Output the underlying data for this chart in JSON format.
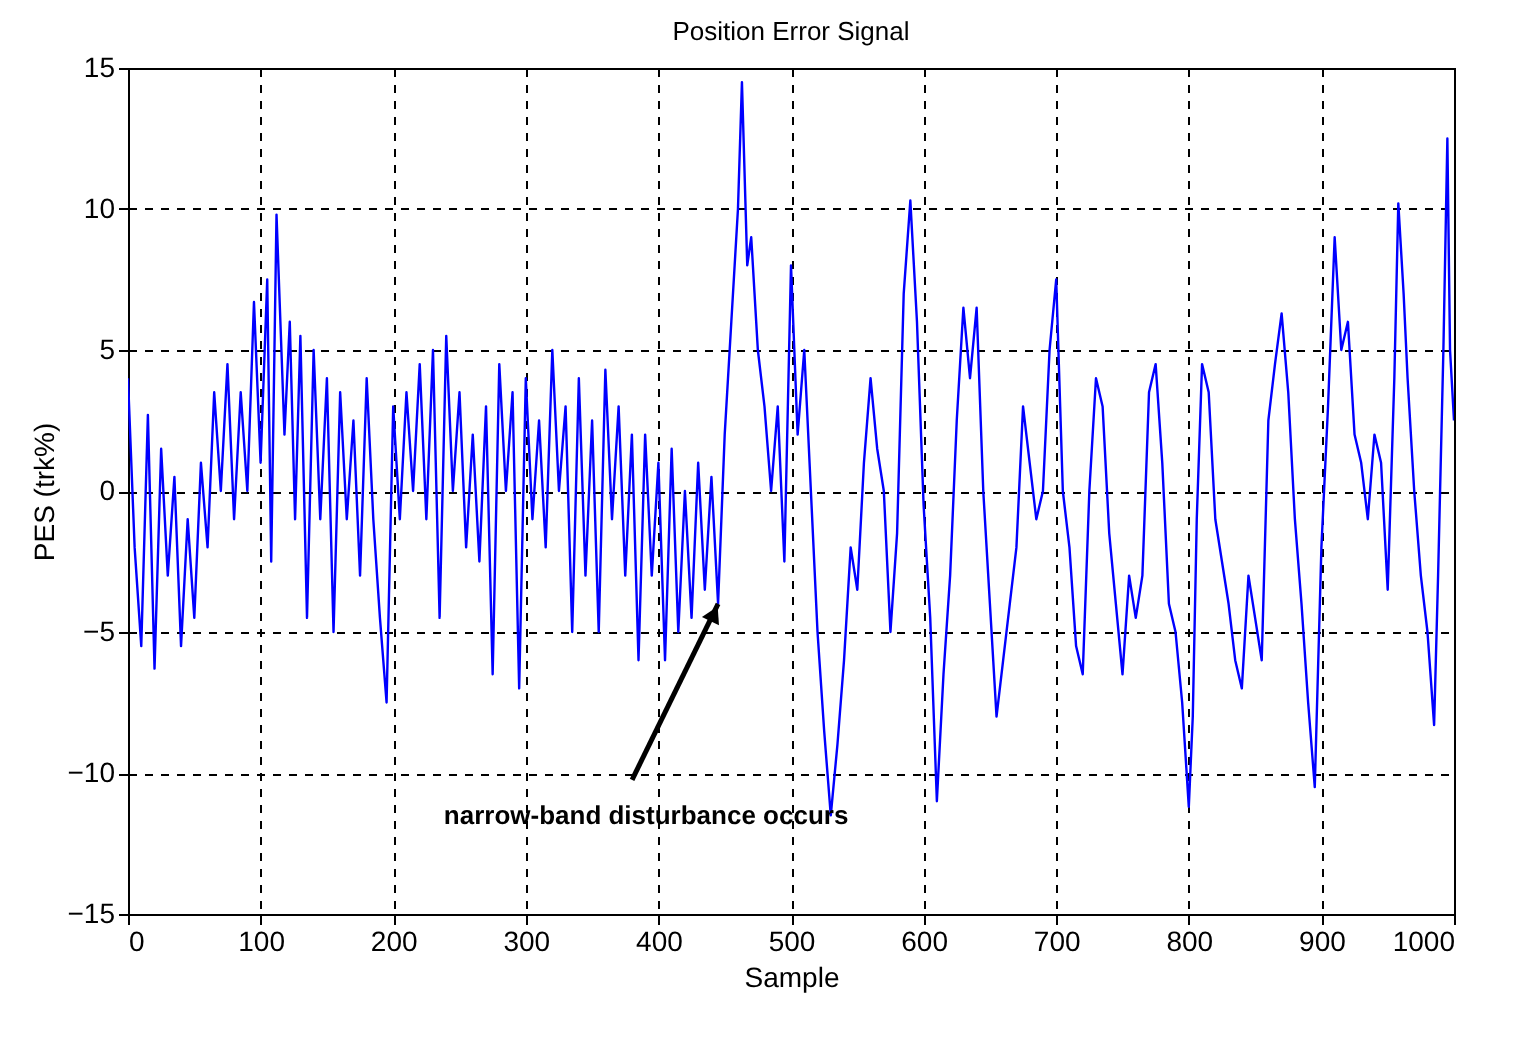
{
  "chart_data": {
    "type": "line",
    "title": "Position Error Signal",
    "xlabel": "Sample",
    "ylabel": "PES (trk%)",
    "x": [
      0,
      5,
      10,
      15,
      20,
      25,
      30,
      35,
      40,
      45,
      50,
      55,
      60,
      65,
      70,
      75,
      80,
      85,
      90,
      95,
      100,
      105,
      108,
      112,
      118,
      122,
      126,
      130,
      135,
      140,
      145,
      150,
      155,
      160,
      165,
      170,
      175,
      180,
      185,
      190,
      195,
      200,
      205,
      210,
      215,
      220,
      225,
      230,
      235,
      240,
      245,
      250,
      255,
      260,
      265,
      270,
      275,
      280,
      285,
      290,
      295,
      300,
      305,
      310,
      315,
      320,
      325,
      330,
      335,
      340,
      345,
      350,
      355,
      360,
      365,
      370,
      375,
      380,
      385,
      390,
      395,
      400,
      405,
      410,
      415,
      420,
      425,
      430,
      435,
      440,
      445,
      450,
      455,
      460,
      463,
      467,
      470,
      475,
      480,
      485,
      490,
      495,
      500,
      505,
      510,
      515,
      520,
      525,
      530,
      535,
      540,
      545,
      550,
      555,
      560,
      565,
      570,
      575,
      580,
      585,
      590,
      595,
      600,
      605,
      610,
      615,
      620,
      625,
      630,
      635,
      640,
      645,
      650,
      655,
      660,
      665,
      670,
      675,
      680,
      685,
      690,
      695,
      700,
      705,
      710,
      715,
      720,
      725,
      730,
      735,
      740,
      745,
      750,
      755,
      760,
      765,
      770,
      775,
      780,
      785,
      790,
      795,
      800,
      803,
      806,
      810,
      815,
      820,
      825,
      830,
      835,
      840,
      845,
      850,
      855,
      860,
      865,
      870,
      875,
      880,
      885,
      890,
      895,
      900,
      905,
      910,
      915,
      920,
      925,
      930,
      935,
      940,
      945,
      950,
      955,
      958,
      962,
      965,
      970,
      975,
      980,
      985,
      988,
      992,
      995,
      997,
      1000
    ],
    "series": [
      {
        "color": "#0000ff",
        "values": [
          4,
          -2,
          -5.5,
          2.7,
          -6.3,
          1.5,
          -3,
          0.5,
          -5.5,
          -1,
          -4.5,
          1,
          -2,
          3.5,
          0,
          4.5,
          -1,
          3.5,
          0,
          6.7,
          1,
          7.5,
          -2.5,
          9.8,
          2,
          6,
          -1,
          5.5,
          -4.5,
          5,
          -1,
          4,
          -5,
          3.5,
          -1,
          2.5,
          -3,
          4,
          -1,
          -4.5,
          -7.5,
          3,
          -1,
          3.5,
          0,
          4.5,
          -1,
          5,
          -4.5,
          5.5,
          0,
          3.5,
          -2,
          2,
          -2.5,
          3,
          -6.5,
          4.5,
          0,
          3.5,
          -7,
          4,
          -1,
          2.5,
          -2,
          5,
          0,
          3,
          -5,
          4,
          -3,
          2.5,
          -5,
          4.3,
          -1,
          3,
          -3,
          2,
          -6,
          2,
          -3,
          1,
          -6,
          1.5,
          -5,
          0,
          -4.5,
          1,
          -3.5,
          0.5,
          -4,
          2,
          6,
          10,
          14.5,
          8,
          9,
          5,
          3,
          0,
          3,
          -2.5,
          8,
          2,
          5,
          0,
          -5,
          -8.5,
          -11.5,
          -9,
          -6,
          -2,
          -3.5,
          1,
          4,
          1.5,
          0,
          -5,
          -1.5,
          7,
          10.3,
          6,
          -0.5,
          -4.5,
          -11,
          -6.5,
          -3,
          2.5,
          6.5,
          4,
          6.5,
          0,
          -4,
          -8,
          -6,
          -4,
          -2,
          3,
          1,
          -1,
          0,
          5,
          7.5,
          0,
          -2,
          -5.5,
          -6.5,
          0,
          4,
          3,
          -1.5,
          -4,
          -6.5,
          -3,
          -4.5,
          -3,
          3.5,
          4.5,
          1,
          -4,
          -5,
          -7.5,
          -11.2,
          -8,
          -1,
          4.5,
          3.5,
          -1,
          -2.5,
          -4,
          -6,
          -7,
          -3,
          -4.5,
          -6,
          2.5,
          4.5,
          6.3,
          3.5,
          -1,
          -4,
          -7.5,
          -10.5,
          -2,
          3,
          9,
          5,
          6,
          2,
          1,
          -1,
          2,
          1,
          -3.5,
          4,
          10.2,
          7,
          4,
          0,
          -3,
          -5,
          -8.3,
          -3,
          5,
          12.5,
          5,
          2.5
        ]
      }
    ],
    "xlim": [
      0,
      1000
    ],
    "xticks": [
      0,
      100,
      200,
      300,
      400,
      500,
      600,
      700,
      800,
      900,
      1000
    ],
    "ylim": [
      -15,
      15
    ],
    "yticks": [
      -15,
      -10,
      -5,
      0,
      5,
      10,
      15
    ],
    "grid": true,
    "line_style": "solid",
    "marker": "none",
    "annotations": [
      {
        "text": "narrow-band disturbance occurs",
        "x": 445,
        "y": -4
      }
    ]
  }
}
